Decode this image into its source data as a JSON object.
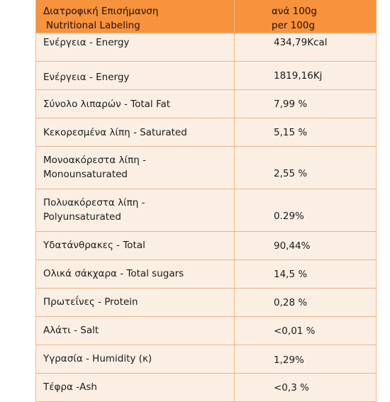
{
  "header": {
    "label_el": "Διατροφική Επισήμανση",
    "label_en": "Nutritional Labeling",
    "value_el": "ανά 100g",
    "value_en": "per 100g"
  },
  "rows": [
    {
      "label": "Ενέργεια - Energy",
      "value": "434,79Kcal"
    },
    {
      "label": "Ενέργεια - Energy",
      "value": "1819,16Kj"
    },
    {
      "label": "Σύνολο λιπαρών -  Total Fat",
      "value": "7,99 %"
    },
    {
      "label": "Κεκορεσμένα λίπη - Saturated",
      "value": "5,15 %"
    },
    {
      "label": "Μονοακόρεστα λίπη -",
      "label_line2": "Monounsaturated",
      "value": "2,55 %"
    },
    {
      "label": "Πολυακόρεστα λίπη -",
      "label_line2": "Polyunsaturated",
      "value": "0.29%"
    },
    {
      "label": "Υδατάνθρακες - Total",
      "value": "90,44%"
    },
    {
      "label": "Ολικά σάκχαρα - Total sugars",
      "value": "14,5 %"
    },
    {
      "label": "Πρωτεΐνες - Protein",
      "value": "0,28 %"
    },
    {
      "label": "Αλάτι - Salt",
      "value": "<0,01 %"
    },
    {
      "label": "Υγρασία - Humidity (κ)",
      "value": "1,29%"
    },
    {
      "label": "Τέφρα -Ash",
      "value": "<0,3 %"
    }
  ],
  "colors": {
    "header_bg": "#f7923d",
    "row_bg": "#fbefe4",
    "grid": "#e7b28f"
  }
}
